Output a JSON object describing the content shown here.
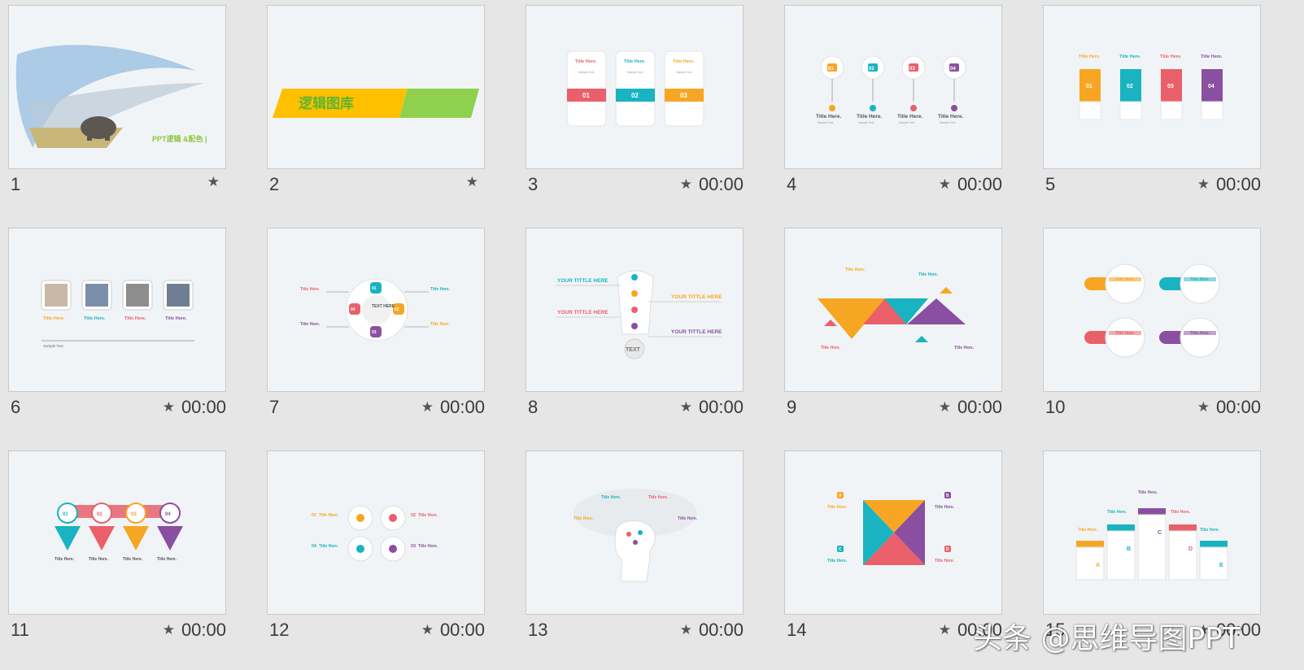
{
  "slides": [
    {
      "number": "1",
      "time": "",
      "star": "★",
      "text": "PPT逻辑 &配色 |"
    },
    {
      "number": "2",
      "time": "",
      "star": "★",
      "text": "逻辑图库"
    },
    {
      "number": "3",
      "time": "00:00",
      "star": "★",
      "title": "Title Here.",
      "sub": "Sample Text.",
      "labels": [
        "01",
        "02",
        "03"
      ]
    },
    {
      "number": "4",
      "time": "00:00",
      "star": "★",
      "title": "Title Here.",
      "sub": "Sample Text.",
      "labels": [
        "01",
        "02",
        "03",
        "04"
      ]
    },
    {
      "number": "5",
      "time": "00:00",
      "star": "★",
      "title": "Title Here.",
      "sub": "Sample Text.",
      "labels": [
        "01",
        "02",
        "03",
        "04"
      ]
    },
    {
      "number": "6",
      "time": "00:00",
      "star": "★",
      "title": "Title Here.",
      "sub": "Sample Text."
    },
    {
      "number": "7",
      "time": "00:00",
      "star": "★",
      "title": "Title Here.",
      "sub": "Sample Text.",
      "center": "TEXT HERE",
      "labels": [
        "01",
        "02",
        "03",
        "04"
      ]
    },
    {
      "number": "8",
      "time": "00:00",
      "star": "★",
      "title": "YOUR TITTLE HERE",
      "sub": "Sample Text.",
      "center": "TEXT"
    },
    {
      "number": "9",
      "time": "00:00",
      "star": "★",
      "title": "Title Here.",
      "sub": "Sample Text."
    },
    {
      "number": "10",
      "time": "00:00",
      "star": "★",
      "title": "Title Here.",
      "sub": "Sample Text."
    },
    {
      "number": "11",
      "time": "00:00",
      "star": "★",
      "title": "Title Here.",
      "sub": "Sample Text.",
      "labels": [
        "01",
        "02",
        "03",
        "04"
      ]
    },
    {
      "number": "12",
      "time": "00:00",
      "star": "★",
      "title": "Title Here.",
      "sub": "Sample Text.",
      "labels": [
        "01",
        "02",
        "03",
        "04"
      ]
    },
    {
      "number": "13",
      "time": "00:00",
      "star": "★",
      "title": "Title Here.",
      "sub": "Sample Text."
    },
    {
      "number": "14",
      "time": "00:00",
      "star": "★",
      "title": "Title Here.",
      "sub": "Sample Text.",
      "labels": [
        "A",
        "B",
        "C",
        "D"
      ]
    },
    {
      "number": "15",
      "time": "00:00",
      "star": "★",
      "title": "Title Here.",
      "sub": "Sample Text.",
      "labels": [
        "A",
        "B",
        "C",
        "D",
        "E"
      ]
    }
  ],
  "watermark": "头条 @思维导图PPT",
  "colors": {
    "orange": "#f7a623",
    "teal": "#19b3c1",
    "red": "#e9606a",
    "purple": "#8a4fa0",
    "green": "#8fd14f",
    "yellow": "#ffc000"
  }
}
